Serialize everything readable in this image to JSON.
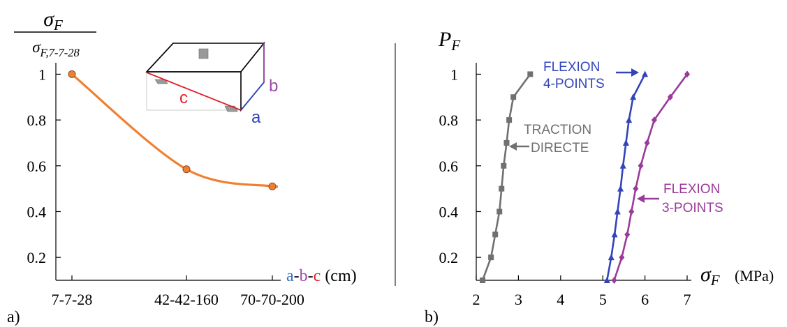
{
  "chart_data": [
    {
      "panel": "a)",
      "type": "line",
      "ylabel_num": "σF",
      "ylabel_den": "σF,7-7-28",
      "xlabel_parts": [
        "a",
        "-",
        "b",
        "-",
        "c",
        " (cm)"
      ],
      "categories": [
        "7-7-28",
        "42-42-160",
        "70-70-200"
      ],
      "x": [
        0,
        1,
        1.75
      ],
      "y_ticks": [
        "0.2",
        "0.4",
        "0.6",
        "0.8",
        "1"
      ],
      "ylim": [
        0.1,
        1.05
      ],
      "series": [
        {
          "color": "#f08030",
          "values": [
            1.0,
            0.585,
            0.51
          ]
        }
      ],
      "inset": {
        "labels": [
          "c",
          "b",
          "a"
        ],
        "colors": [
          "#e0202a",
          "#9a4aa8",
          "#3344bb"
        ]
      }
    },
    {
      "panel": "b)",
      "type": "line",
      "ylabel": "PF",
      "xlabel": "σF",
      "xlabel_unit": "(MPa)",
      "x_ticks": [
        "2",
        "3",
        "4",
        "5",
        "6",
        "7"
      ],
      "y_ticks": [
        "0.2",
        "0.4",
        "0.6",
        "0.8",
        "1"
      ],
      "xlim": [
        2,
        7.1
      ],
      "ylim": [
        0.1,
        1.05
      ],
      "series": [
        {
          "name": "TRACTION DIRECTE",
          "name_lines": [
            "TRACTION",
            "DIRECTE"
          ],
          "color": "#707070",
          "marker": "square",
          "points": [
            [
              2.15,
              0.1
            ],
            [
              2.35,
              0.2
            ],
            [
              2.45,
              0.3
            ],
            [
              2.55,
              0.4
            ],
            [
              2.6,
              0.5
            ],
            [
              2.65,
              0.6
            ],
            [
              2.72,
              0.7
            ],
            [
              2.78,
              0.8
            ],
            [
              2.88,
              0.9
            ],
            [
              3.28,
              1.0
            ]
          ]
        },
        {
          "name": "FLEXION 4-POINTS",
          "name_lines": [
            "FLEXION",
            "4-POINTS"
          ],
          "color": "#3344bb",
          "marker": "triangle",
          "points": [
            [
              5.1,
              0.1
            ],
            [
              5.2,
              0.2
            ],
            [
              5.28,
              0.3
            ],
            [
              5.35,
              0.4
            ],
            [
              5.42,
              0.5
            ],
            [
              5.48,
              0.6
            ],
            [
              5.55,
              0.7
            ],
            [
              5.62,
              0.8
            ],
            [
              5.72,
              0.9
            ],
            [
              6.0,
              1.0
            ]
          ]
        },
        {
          "name": "FLEXION 3-POINTS",
          "name_lines": [
            "FLEXION",
            "3-POINTS"
          ],
          "color": "#9a3a9a",
          "marker": "diamond",
          "points": [
            [
              5.27,
              0.1
            ],
            [
              5.45,
              0.2
            ],
            [
              5.58,
              0.3
            ],
            [
              5.68,
              0.4
            ],
            [
              5.78,
              0.5
            ],
            [
              5.9,
              0.6
            ],
            [
              6.05,
              0.7
            ],
            [
              6.22,
              0.8
            ],
            [
              6.6,
              0.9
            ],
            [
              7.0,
              1.0
            ]
          ]
        }
      ]
    }
  ]
}
